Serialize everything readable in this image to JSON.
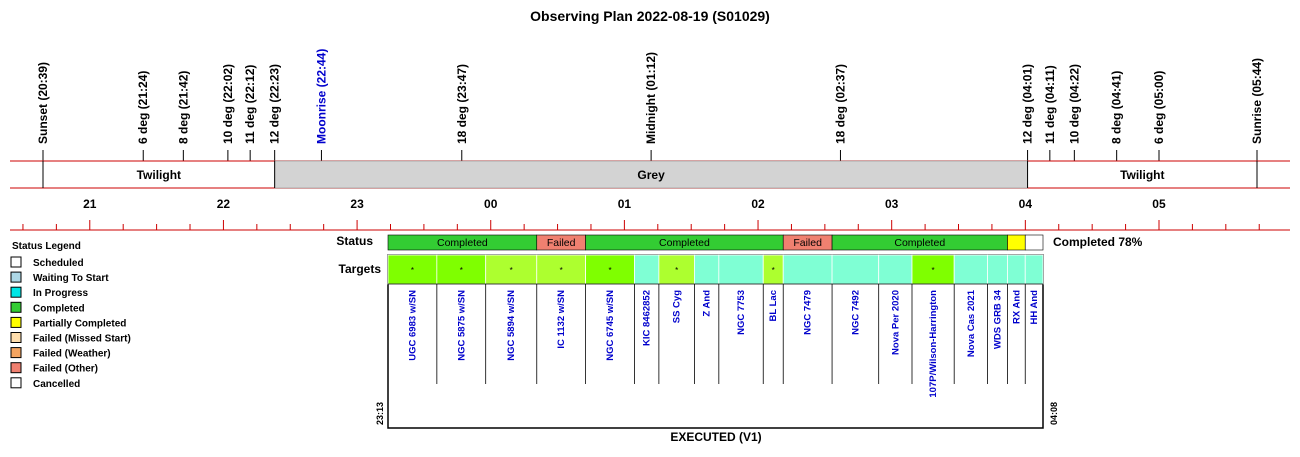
{
  "title": "Observing Plan 2022-08-19 (S01029)",
  "colors": {
    "red_line": "#cc0000",
    "grey_band": "#d3d3d3",
    "completed": "#33cc33",
    "failed": "#f08070",
    "partial": "#ffff00",
    "target_green": "#7fff00",
    "target_lime": "#adff2f",
    "target_aqua": "#7fffd4",
    "target_label": "#0000cc"
  },
  "events": [
    {
      "label": "Sunset (20:39)",
      "time": "20:39",
      "color": "#000000",
      "tick": true
    },
    {
      "label": "6 deg (21:24)",
      "time": "21:24",
      "color": "#000000",
      "tick": false
    },
    {
      "label": "8 deg (21:42)",
      "time": "21:42",
      "color": "#000000",
      "tick": false
    },
    {
      "label": "10 deg (22:02)",
      "time": "22:02",
      "color": "#000000",
      "tick": false
    },
    {
      "label": "11 deg (22:12)",
      "time": "22:12",
      "color": "#000000",
      "tick": false
    },
    {
      "label": "12 deg (22:23)",
      "time": "22:23",
      "color": "#000000",
      "tick": true
    },
    {
      "label": "Moonrise (22:44)",
      "time": "22:44",
      "color": "#0000cc",
      "tick": false
    },
    {
      "label": "18 deg (23:47)",
      "time": "23:47",
      "color": "#000000",
      "tick": false
    },
    {
      "label": "Midnight (01:12)",
      "time": "01:12",
      "color": "#000000",
      "tick": false
    },
    {
      "label": "18 deg (02:37)",
      "time": "02:37",
      "color": "#000000",
      "tick": false
    },
    {
      "label": "12 deg (04:01)",
      "time": "04:01",
      "color": "#000000",
      "tick": true
    },
    {
      "label": "11 deg (04:11)",
      "time": "04:11",
      "color": "#000000",
      "tick": false
    },
    {
      "label": "10 deg (04:22)",
      "time": "04:22",
      "color": "#000000",
      "tick": false
    },
    {
      "label": "8 deg (04:41)",
      "time": "04:41",
      "color": "#000000",
      "tick": false
    },
    {
      "label": "6 deg (05:00)",
      "time": "05:00",
      "color": "#000000",
      "tick": false
    },
    {
      "label": "Sunrise (05:44)",
      "time": "05:44",
      "color": "#000000",
      "tick": true
    }
  ],
  "phases": [
    {
      "label": "Twilight",
      "start": "20:39",
      "end": "22:23",
      "shaded": false
    },
    {
      "label": "Grey",
      "start": "22:23",
      "end": "04:01",
      "shaded": true
    },
    {
      "label": "Twilight",
      "start": "04:01",
      "end": "05:44",
      "shaded": false
    }
  ],
  "hour_labels": [
    "21",
    "22",
    "23",
    "00",
    "01",
    "02",
    "03",
    "04",
    "05"
  ],
  "legend": {
    "title": "Status Legend",
    "items": [
      {
        "label": "Scheduled",
        "color": "#ffffff"
      },
      {
        "label": "Waiting To Start",
        "color": "#add8e6"
      },
      {
        "label": "In Progress",
        "color": "#00e5e5"
      },
      {
        "label": "Completed",
        "color": "#33cc33"
      },
      {
        "label": "Partially Completed",
        "color": "#ffff00"
      },
      {
        "label": "Failed (Missed Start)",
        "color": "#ffdead"
      },
      {
        "label": "Failed (Weather)",
        "color": "#f4a460"
      },
      {
        "label": "Failed (Other)",
        "color": "#f08070"
      },
      {
        "label": "Cancelled",
        "color": "#ffffff"
      }
    ]
  },
  "status_label": "Status",
  "targets_label": "Targets",
  "completion_text": "Completed 78%",
  "start_time": "23:13",
  "end_time": "04:08",
  "footer": "EXECUTED (V1)",
  "chart_data": {
    "type": "table",
    "x_axis": {
      "start": "20:39",
      "end": "05:44",
      "unit": "local time"
    },
    "status_blocks": [
      {
        "label": "Completed",
        "start": "23:13",
        "end": "00:20",
        "status": "completed"
      },
      {
        "label": "Failed",
        "start": "00:20",
        "end": "00:42",
        "status": "failed"
      },
      {
        "label": "Completed",
        "start": "00:42",
        "end": "02:11",
        "status": "completed"
      },
      {
        "label": "Failed",
        "start": "02:11",
        "end": "02:33",
        "status": "failed"
      },
      {
        "label": "",
        "start": "02:33",
        "end": "03:52",
        "status": "completed"
      },
      {
        "label": "Completed",
        "start": "02:33",
        "end": "03:52",
        "status": "completed_text"
      },
      {
        "label": "",
        "start": "03:52",
        "end": "04:00",
        "status": "partial"
      },
      {
        "label": "",
        "start": "04:00",
        "end": "04:08",
        "status": "scheduled"
      }
    ],
    "targets": [
      {
        "name": "UGC 6983 w/SN",
        "start": "23:13",
        "end": "23:35",
        "color": "#7fff00",
        "marker": "*"
      },
      {
        "name": "NGC 5875 w/SN",
        "start": "23:35",
        "end": "23:57",
        "color": "#7fff00",
        "marker": "*"
      },
      {
        "name": "NGC 5894 w/SN",
        "start": "23:57",
        "end": "00:20",
        "color": "#adff2f",
        "marker": "*"
      },
      {
        "name": "IC 1132 w/SN",
        "start": "00:20",
        "end": "00:42",
        "color": "#adff2f",
        "marker": "*"
      },
      {
        "name": "NGC 6745 w/SN",
        "start": "00:42",
        "end": "01:04",
        "color": "#7fff00",
        "marker": "*"
      },
      {
        "name": "KIC 8462852",
        "start": "01:04",
        "end": "01:15",
        "color": "#7fffd4",
        "marker": ""
      },
      {
        "name": "SS Cyg",
        "start": "01:15",
        "end": "01:31",
        "color": "#adff2f",
        "marker": "*"
      },
      {
        "name": "Z And",
        "start": "01:31",
        "end": "01:42",
        "color": "#7fffd4",
        "marker": ""
      },
      {
        "name": "NGC 7753",
        "start": "01:42",
        "end": "02:02",
        "color": "#7fffd4",
        "marker": ""
      },
      {
        "name": "BL Lac",
        "start": "02:02",
        "end": "02:11",
        "color": "#adff2f",
        "marker": "*"
      },
      {
        "name": "NGC 7479",
        "start": "02:11",
        "end": "02:33",
        "color": "#7fffd4",
        "marker": ""
      },
      {
        "name": "NGC 7492",
        "start": "02:33",
        "end": "02:54",
        "color": "#7fffd4",
        "marker": ""
      },
      {
        "name": "Nova Per 2020",
        "start": "02:54",
        "end": "03:09",
        "color": "#7fffd4",
        "marker": ""
      },
      {
        "name": "107P/Wilson-Harrington",
        "start": "03:09",
        "end": "03:28",
        "color": "#7fff00",
        "marker": "*"
      },
      {
        "name": "Nova Cas 2021",
        "start": "03:28",
        "end": "03:43",
        "color": "#7fffd4",
        "marker": ""
      },
      {
        "name": "WDS GRB 34",
        "start": "03:43",
        "end": "03:52",
        "color": "#7fffd4",
        "marker": ""
      },
      {
        "name": "RX And",
        "start": "03:52",
        "end": "04:00",
        "color": "#7fffd4",
        "marker": ""
      },
      {
        "name": "HH And",
        "start": "04:00",
        "end": "04:08",
        "color": "#7fffd4",
        "marker": ""
      }
    ]
  }
}
